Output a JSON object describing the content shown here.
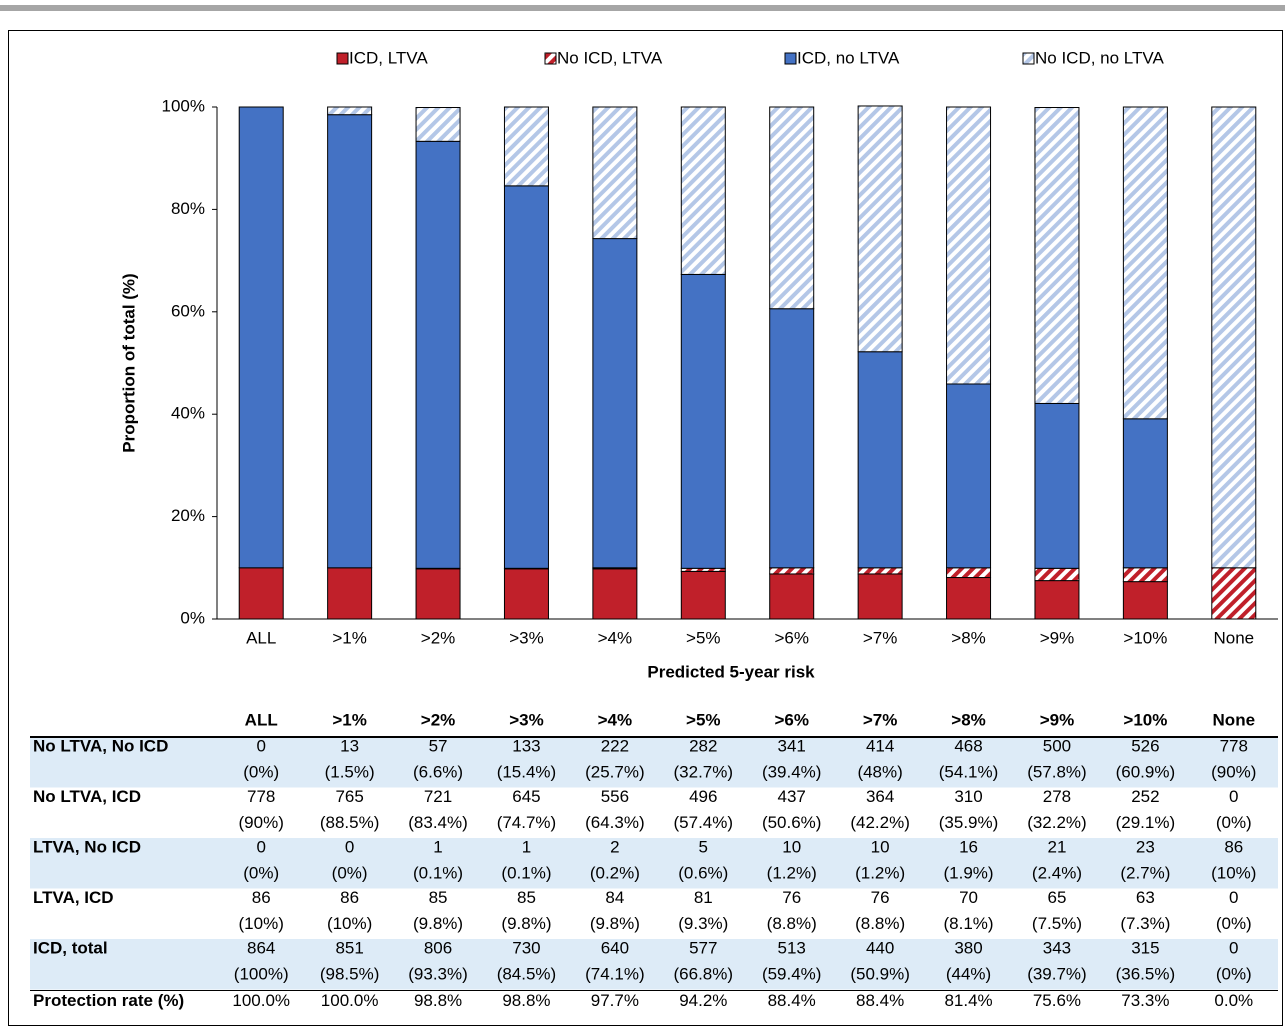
{
  "chart_data": {
    "type": "stacked-bar",
    "x_label": "Predicted 5-year risk",
    "y_label": "Proportion of total (%)",
    "categories": [
      "ALL",
      ">1%",
      ">2%",
      ">3%",
      ">4%",
      ">5%",
      ">6%",
      ">7%",
      ">8%",
      ">9%",
      ">10%",
      "None"
    ],
    "series": [
      {
        "name": "ICD, LTVA",
        "color": "#c0202a",
        "hatch": false,
        "values": [
          10,
          10,
          9.8,
          9.8,
          9.8,
          9.3,
          8.8,
          8.8,
          8.1,
          7.5,
          7.3,
          0
        ]
      },
      {
        "name": "No ICD, LTVA",
        "color": "#c0202a",
        "hatch": true,
        "values": [
          0,
          0,
          0.1,
          0.1,
          0.2,
          0.6,
          1.2,
          1.2,
          1.9,
          2.4,
          2.7,
          10
        ]
      },
      {
        "name": "ICD, no LTVA",
        "color": "#4472c4",
        "hatch": false,
        "values": [
          90,
          88.5,
          83.4,
          74.7,
          64.3,
          57.4,
          50.6,
          42.2,
          35.9,
          32.2,
          29.1,
          0
        ]
      },
      {
        "name": "No ICD, no LTVA",
        "color": "#b4c7e7",
        "hatch": true,
        "values": [
          0,
          1.5,
          6.6,
          15.4,
          25.7,
          32.7,
          39.4,
          48,
          54.1,
          57.8,
          60.9,
          90
        ]
      }
    ],
    "ylim": [
      0,
      100
    ],
    "yticks": [
      {
        "value": 0,
        "label": "0%"
      },
      {
        "value": 20,
        "label": "20%"
      },
      {
        "value": 40,
        "label": "40%"
      },
      {
        "value": 60,
        "label": "60%"
      },
      {
        "value": 80,
        "label": "80%"
      },
      {
        "value": 100,
        "label": "100%"
      }
    ],
    "legend": "top"
  },
  "table": {
    "rows": [
      {
        "label": "No LTVA, No ICD",
        "counts": [
          0,
          13,
          57,
          133,
          222,
          282,
          341,
          414,
          468,
          500,
          526,
          778
        ],
        "percents": [
          "(0%)",
          "(1.5%)",
          "(6.6%)",
          "(15.4%)",
          "(25.7%)",
          "(32.7%)",
          "(39.4%)",
          "(48%)",
          "(54.1%)",
          "(57.8%)",
          "(60.9%)",
          "(90%)"
        ]
      },
      {
        "label": "No LTVA, ICD",
        "counts": [
          778,
          765,
          721,
          645,
          556,
          496,
          437,
          364,
          310,
          278,
          252,
          0
        ],
        "percents": [
          "(90%)",
          "(88.5%)",
          "(83.4%)",
          "(74.7%)",
          "(64.3%)",
          "(57.4%)",
          "(50.6%)",
          "(42.2%)",
          "(35.9%)",
          "(32.2%)",
          "(29.1%)",
          "(0%)"
        ]
      },
      {
        "label": "LTVA, No ICD",
        "counts": [
          0,
          0,
          1,
          1,
          2,
          5,
          10,
          10,
          16,
          21,
          23,
          86
        ],
        "percents": [
          "(0%)",
          "(0%)",
          "(0.1%)",
          "(0.1%)",
          "(0.2%)",
          "(0.6%)",
          "(1.2%)",
          "(1.2%)",
          "(1.9%)",
          "(2.4%)",
          "(2.7%)",
          "(10%)"
        ]
      },
      {
        "label": "LTVA, ICD",
        "counts": [
          86,
          86,
          85,
          85,
          84,
          81,
          76,
          76,
          70,
          65,
          63,
          0
        ],
        "percents": [
          "(10%)",
          "(10%)",
          "(9.8%)",
          "(9.8%)",
          "(9.8%)",
          "(9.3%)",
          "(8.8%)",
          "(8.8%)",
          "(8.1%)",
          "(7.5%)",
          "(7.3%)",
          "(0%)"
        ]
      },
      {
        "label": "ICD, total",
        "counts": [
          864,
          851,
          806,
          730,
          640,
          577,
          513,
          440,
          380,
          343,
          315,
          0
        ],
        "percents": [
          "(100%)",
          "(98.5%)",
          "(93.3%)",
          "(84.5%)",
          "(74.1%)",
          "(66.8%)",
          "(59.4%)",
          "(50.9%)",
          "(44%)",
          "(39.7%)",
          "(36.5%)",
          "(0%)"
        ]
      }
    ],
    "summary": {
      "label": "Protection rate (%)",
      "values": [
        "100.0%",
        "100.0%",
        "98.8%",
        "98.8%",
        "97.7%",
        "94.2%",
        "88.4%",
        "88.4%",
        "81.4%",
        "75.6%",
        "73.3%",
        "0.0%"
      ]
    }
  }
}
